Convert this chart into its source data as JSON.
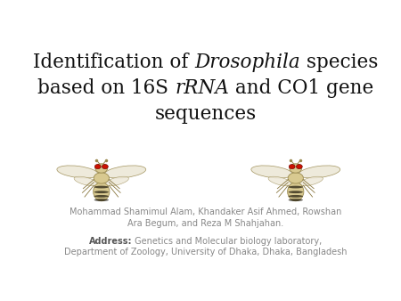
{
  "bg_color": "#ffffff",
  "title_line1_parts": [
    {
      "text": "Identification of ",
      "style": "normal"
    },
    {
      "text": "Drosophila",
      "style": "italic"
    },
    {
      "text": " species",
      "style": "normal"
    }
  ],
  "title_line2_parts": [
    {
      "text": "based on 16S ",
      "style": "normal"
    },
    {
      "text": "rRNA",
      "style": "italic"
    },
    {
      "text": " and CO1 gene",
      "style": "normal"
    }
  ],
  "title_line3": "sequences",
  "title_fontsize": 15.5,
  "title_color": "#111111",
  "authors_line1": "Mohammad Shamimul Alam, Khandaker Asif Ahmed, Rowshan",
  "authors_line2": "Ara Begum, and Reza M Shahjahan.",
  "authors_fontsize": 7.0,
  "authors_color": "#888888",
  "address_label": "Address:",
  "address_body": " Genetics and Molecular biology laboratory,",
  "address_line2": "Department of Zoology, University of Dhaka, Dhaka, Bangladesh",
  "address_fontsize": 7.0,
  "address_color": "#888888",
  "address_bold_color": "#555555",
  "fly_body_color": "#d8c990",
  "fly_stripe_color": "#1a1508",
  "fly_wing_color": "#ede8d8",
  "fly_eye_color": "#cc1100",
  "fly_leg_color": "#8a7840",
  "fly_outline_color": "#9a8a50"
}
